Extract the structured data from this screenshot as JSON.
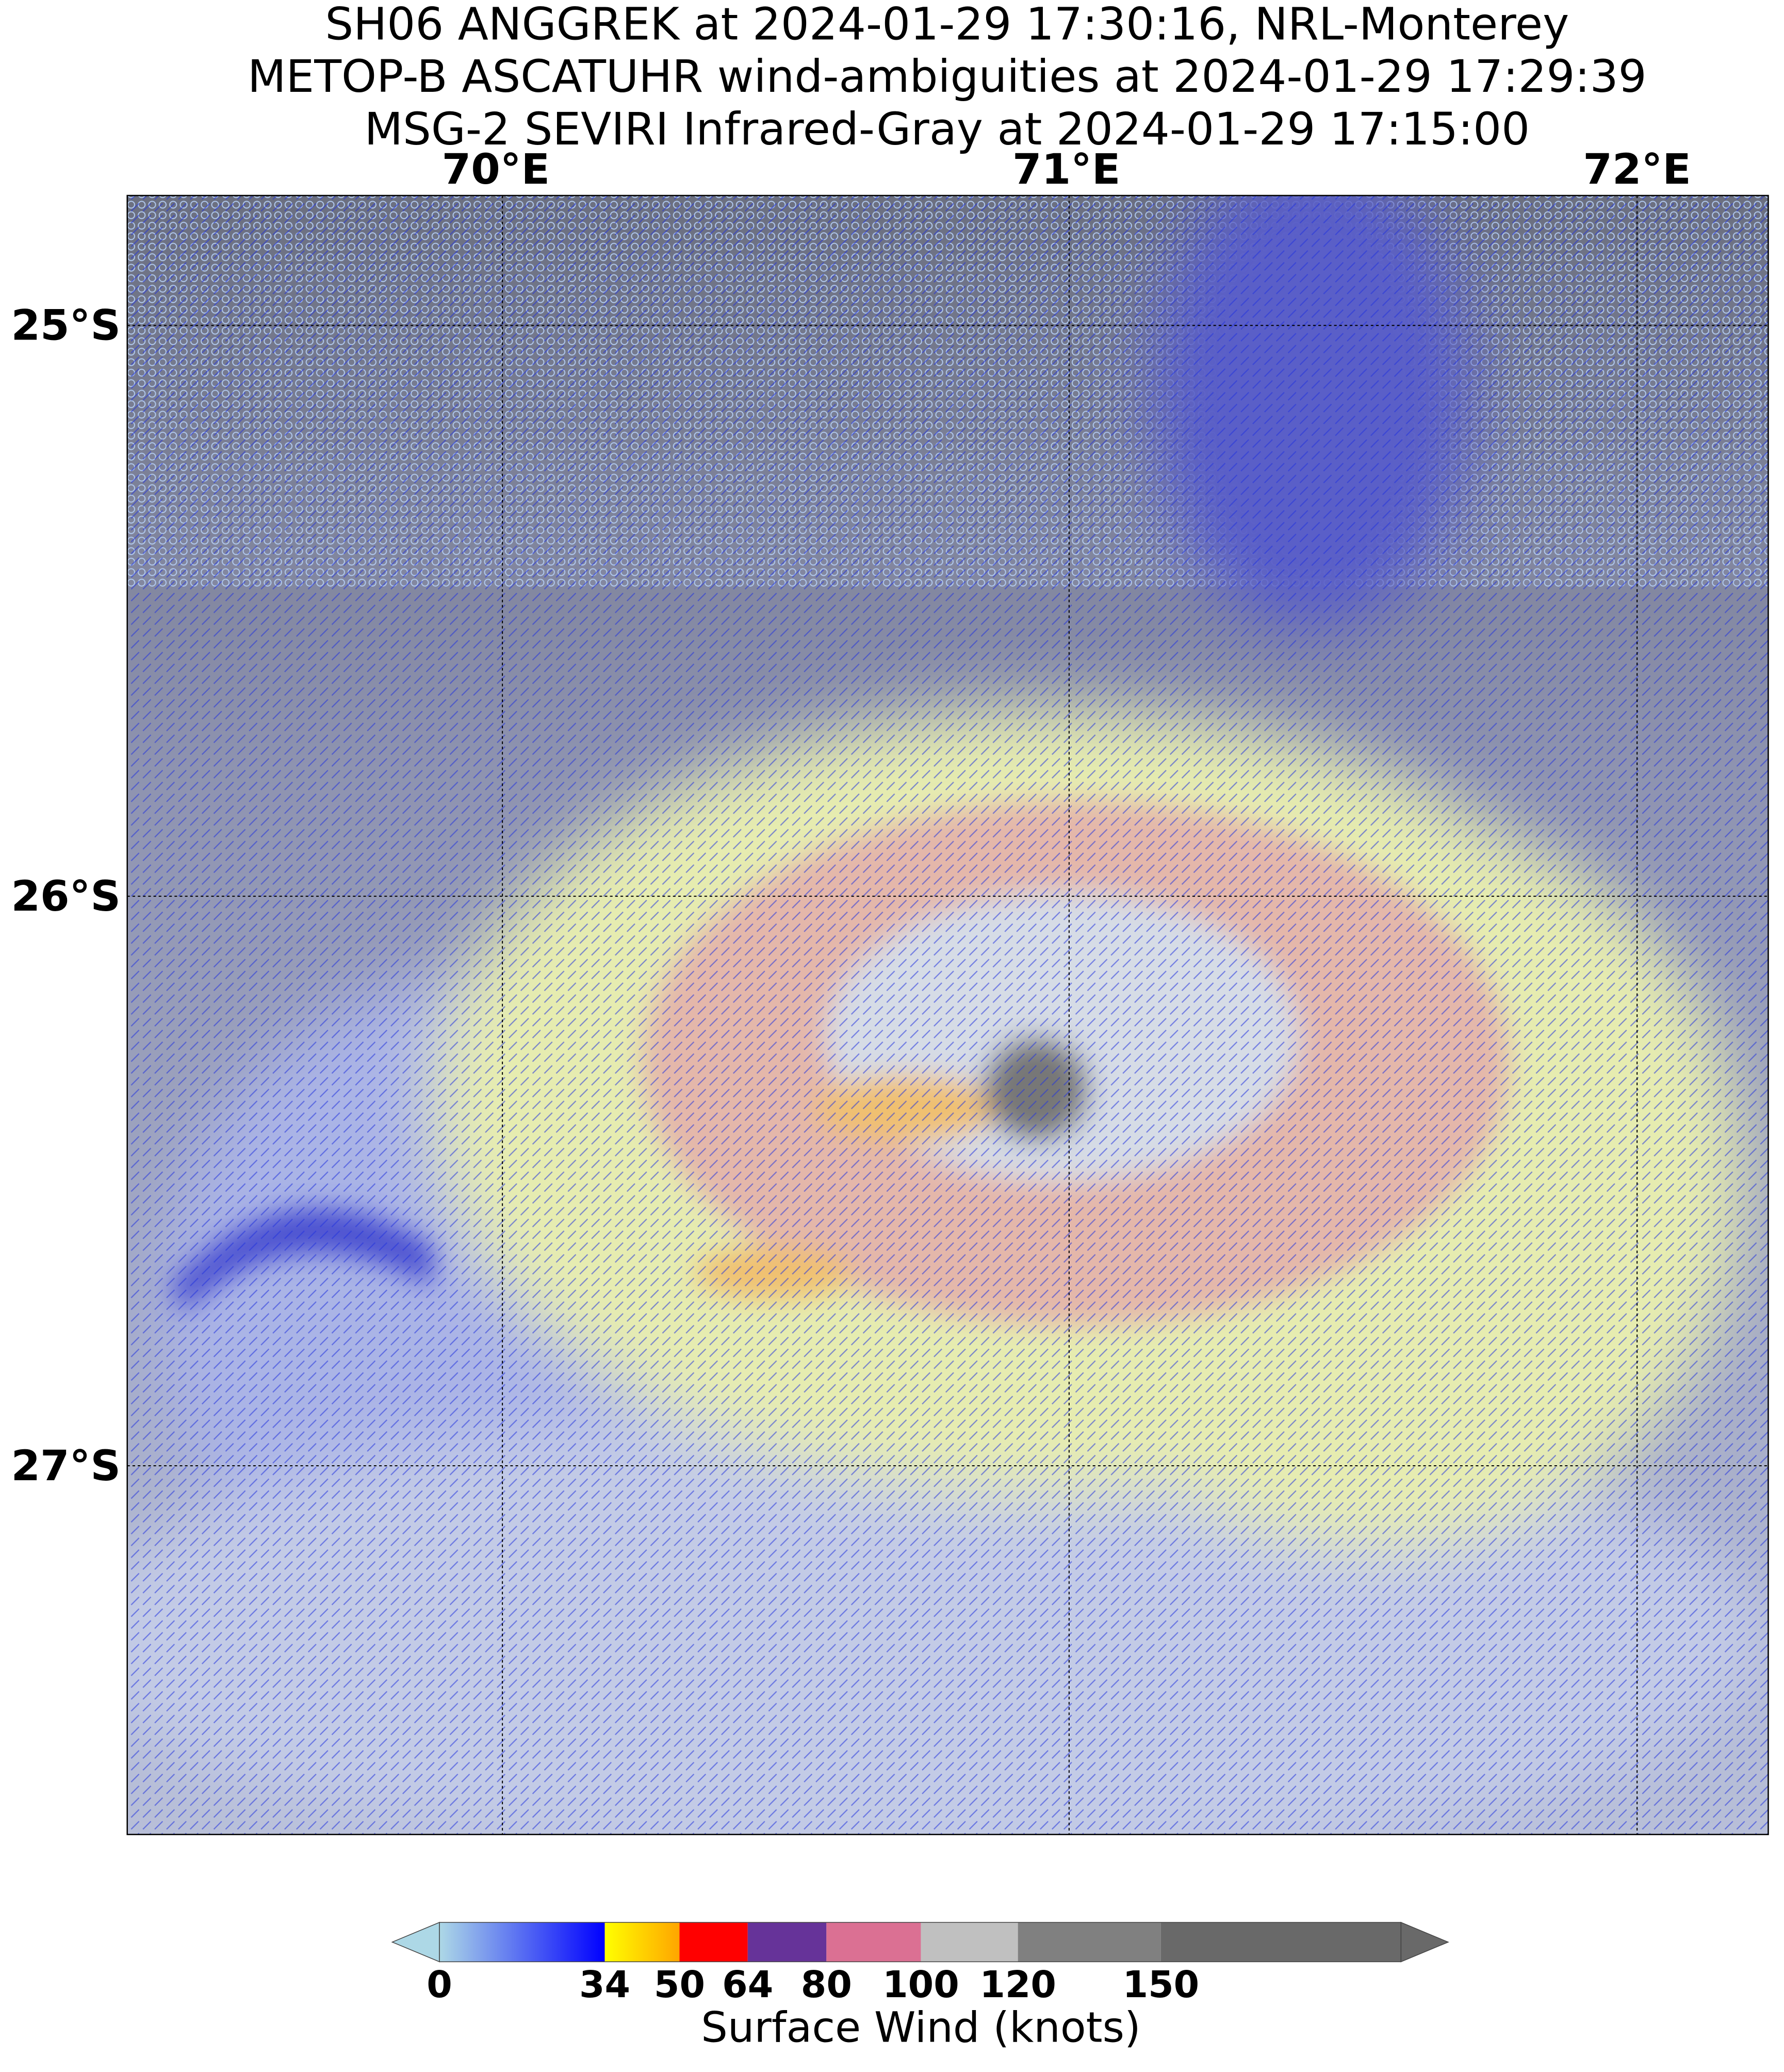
{
  "title": [
    "SH06 ANGGREK at 2024-01-29 17:30:16, NRL-Monterey",
    "METOP-B ASCATUHR wind-ambiguities at 2024-01-29 17:29:39",
    "MSG-2 SEVIRI Infrared-Gray at 2024-01-29 17:15:00"
  ],
  "map": {
    "lon_labels": [
      "70°E",
      "71°E",
      "72°E"
    ],
    "lat_labels": [
      "25°S",
      "26°S",
      "27°S"
    ]
  },
  "colorbar": {
    "label": "Surface Wind (knots)",
    "ticks": [
      0,
      34,
      50,
      64,
      80,
      100,
      120,
      150
    ],
    "colors": [
      "#add8e6",
      "#0000ff",
      "#ffff00",
      "#ff0000",
      "#663399",
      "#db7093",
      "#c0c0c0",
      "#808080",
      "#696969"
    ]
  }
}
